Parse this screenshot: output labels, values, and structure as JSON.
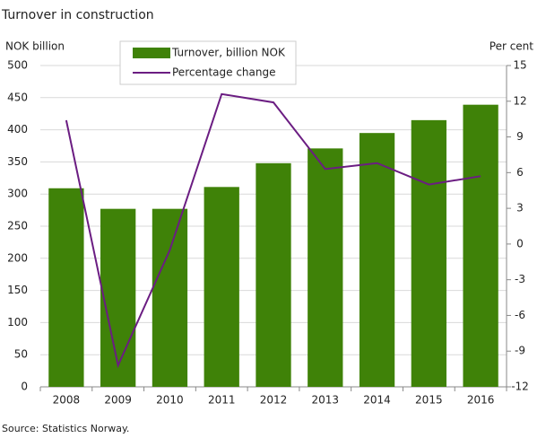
{
  "chart_data": {
    "type": "bar",
    "title": "Turnover in construction",
    "y_label": "NOK billion",
    "y2_label": "Per cent",
    "source": "Source: Statistics Norway.",
    "categories": [
      "2008",
      "2009",
      "2010",
      "2011",
      "2012",
      "2013",
      "2014",
      "2015",
      "2016"
    ],
    "series": [
      {
        "name": "Turnover, billion NOK",
        "type": "bar",
        "color": "#3f8208",
        "values": [
          309,
          277,
          277,
          311,
          348,
          371,
          395,
          415,
          439
        ]
      },
      {
        "name": "Percentage change",
        "type": "line",
        "axis": "y2",
        "color": "#6b1d82",
        "values": [
          10.4,
          -10.2,
          -0.5,
          12.6,
          11.9,
          6.3,
          6.8,
          5.0,
          5.7
        ]
      }
    ],
    "ylim": [
      0,
      500
    ],
    "yticks": [
      0,
      50,
      100,
      150,
      200,
      250,
      300,
      350,
      400,
      450,
      500
    ],
    "y2lim": [
      -12,
      15
    ],
    "y2ticks": [
      -12,
      -9,
      -6,
      -3,
      0,
      3,
      6,
      9,
      12,
      15
    ],
    "grid": true
  }
}
